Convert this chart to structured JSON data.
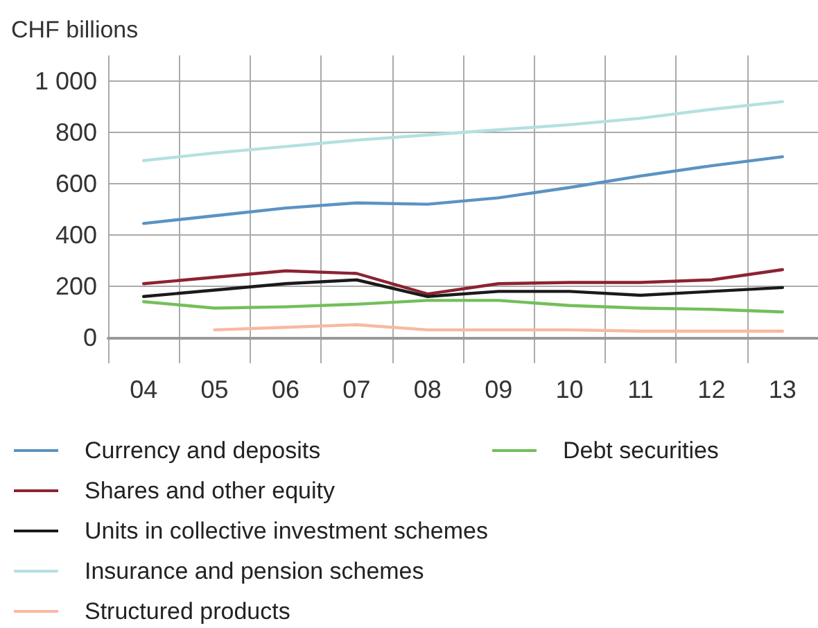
{
  "chart_data": {
    "type": "line",
    "ylabel": "CHF billions",
    "categories": [
      "04",
      "05",
      "06",
      "07",
      "08",
      "09",
      "10",
      "11",
      "12",
      "13"
    ],
    "ylim": [
      -100,
      1100
    ],
    "yticks": [
      0,
      200,
      400,
      600,
      800,
      {
        "value": 1000,
        "label": "1 000"
      }
    ],
    "grid": true,
    "legend": "bottom",
    "marker": "none",
    "line_style": "solid",
    "series": [
      {
        "name": "Currency and deposits",
        "color": "#5b93c3",
        "values": [
          445,
          475,
          505,
          525,
          520,
          545,
          585,
          630,
          670,
          705
        ]
      },
      {
        "name": "Debt securities",
        "color": "#72bf5a",
        "values": [
          140,
          115,
          120,
          130,
          145,
          145,
          125,
          115,
          110,
          100
        ]
      },
      {
        "name": "Shares and other equity",
        "color": "#8c2332",
        "values": [
          210,
          235,
          260,
          250,
          170,
          210,
          215,
          215,
          225,
          265
        ]
      },
      {
        "name": "Units in collective investment schemes",
        "color": "#1a1a1a",
        "values": [
          160,
          185,
          210,
          225,
          160,
          180,
          180,
          165,
          180,
          195
        ]
      },
      {
        "name": "Insurance and pension schemes",
        "color": "#b5e0e0",
        "values": [
          690,
          720,
          745,
          770,
          790,
          810,
          830,
          855,
          890,
          920
        ]
      },
      {
        "name": "Structured products",
        "color": "#f7b9a2",
        "values": [
          null,
          30,
          40,
          50,
          30,
          30,
          30,
          25,
          25,
          25
        ]
      }
    ]
  }
}
